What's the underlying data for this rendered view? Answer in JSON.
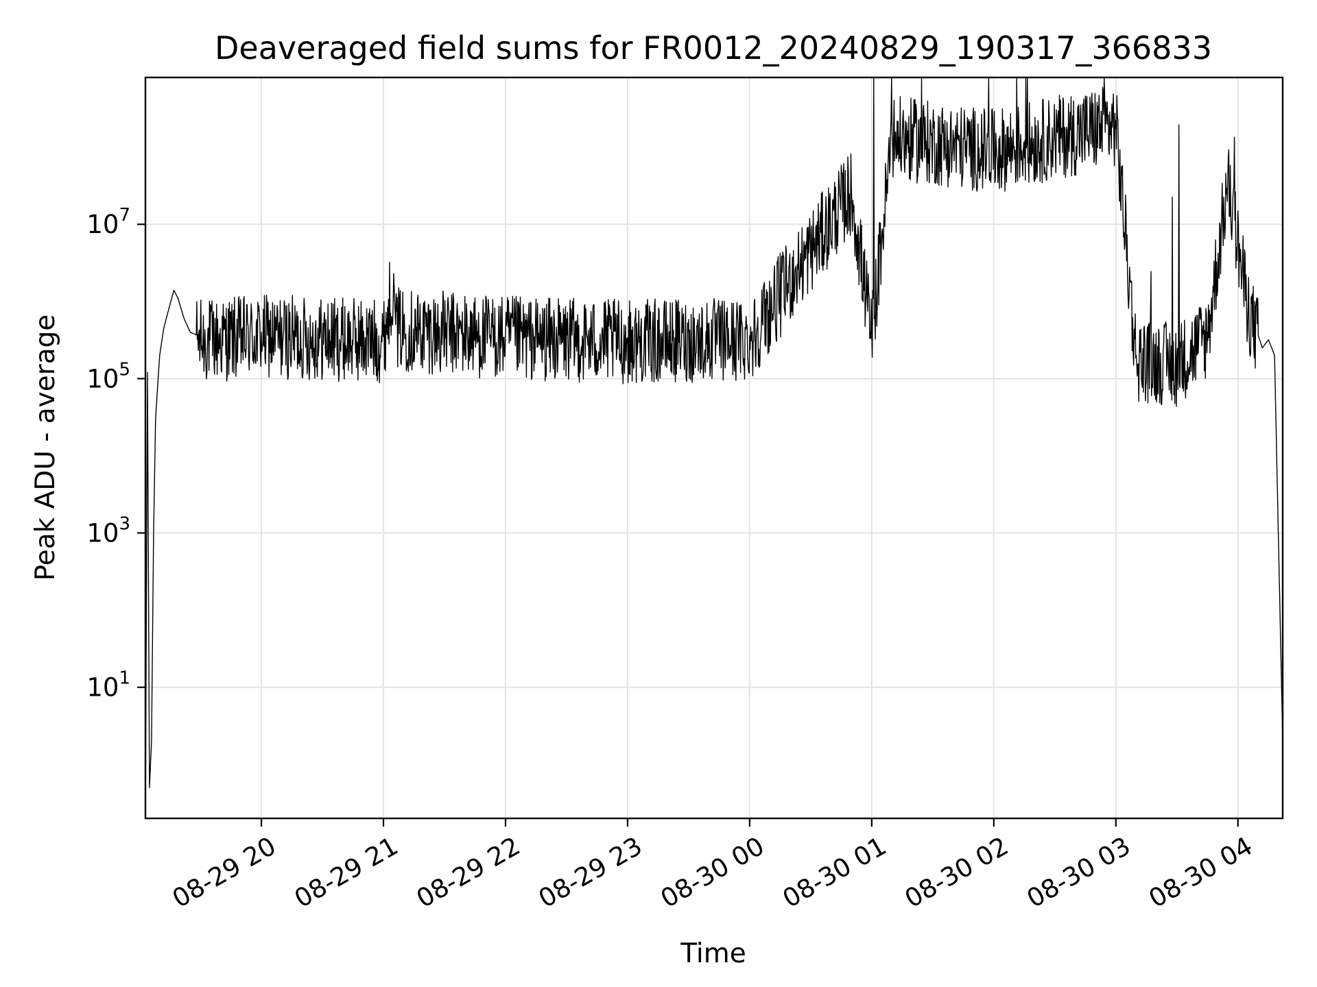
{
  "chart_data": {
    "type": "line",
    "title": "Deaveraged field sums for FR0012_20240829_190317_366833",
    "xlabel": "Time",
    "ylabel": "Peak ADU - average",
    "yscale": "log",
    "grid": true,
    "x_range": [
      "2024-08-29 19:03",
      "2024-08-30 04:22"
    ],
    "ylim": [
      0.2,
      800000000
    ],
    "x_ticks": [
      {
        "time": "2024-08-29 20:00",
        "label": "08-29 20"
      },
      {
        "time": "2024-08-29 21:00",
        "label": "08-29 21"
      },
      {
        "time": "2024-08-29 22:00",
        "label": "08-29 22"
      },
      {
        "time": "2024-08-29 23:00",
        "label": "08-29 23"
      },
      {
        "time": "2024-08-30 00:00",
        "label": "08-30 00"
      },
      {
        "time": "2024-08-30 01:00",
        "label": "08-30 01"
      },
      {
        "time": "2024-08-30 02:00",
        "label": "08-30 02"
      },
      {
        "time": "2024-08-30 03:00",
        "label": "08-30 03"
      },
      {
        "time": "2024-08-30 04:00",
        "label": "08-30 04"
      }
    ],
    "y_ticks": [
      {
        "value": 10,
        "base": "10",
        "exp": "1"
      },
      {
        "value": 1000,
        "base": "10",
        "exp": "3"
      },
      {
        "value": 100000,
        "base": "10",
        "exp": "5"
      },
      {
        "value": 10000000,
        "base": "10",
        "exp": "7"
      }
    ],
    "series": [
      {
        "color": "#000000",
        "points": [
          [
            "2024-08-29 19:03",
            0.2
          ],
          [
            "2024-08-29 19:04",
            120000
          ],
          [
            "2024-08-29 19:05",
            0.5
          ],
          [
            "2024-08-29 19:06",
            2
          ],
          [
            "2024-08-29 19:07",
            1000
          ],
          [
            "2024-08-29 19:08",
            30000
          ],
          [
            "2024-08-29 19:09",
            80000
          ],
          [
            "2024-08-29 19:10",
            200000
          ],
          [
            "2024-08-29 19:12",
            450000
          ],
          [
            "2024-08-29 19:15",
            900000
          ],
          [
            "2024-08-29 19:17",
            1400000
          ],
          [
            "2024-08-29 19:19",
            1100000
          ],
          [
            "2024-08-29 19:22",
            600000
          ],
          [
            "2024-08-29 19:25",
            400000
          ],
          [
            "2024-08-29 19:30",
            350000
          ],
          [
            "2024-08-29 20:00",
            400000
          ],
          [
            "2024-08-29 21:00",
            350000
          ],
          [
            "2024-08-29 21:05",
            2300000
          ],
          [
            "2024-08-29 21:06",
            500000
          ],
          [
            "2024-08-29 22:00",
            380000
          ],
          [
            "2024-08-29 23:00",
            340000
          ],
          [
            "2024-08-30 00:00",
            360000
          ],
          [
            "2024-08-30 00:50",
            30000000
          ],
          [
            "2024-08-30 01:00",
            400000
          ],
          [
            "2024-08-30 01:10",
            150000000
          ],
          [
            "2024-08-30 02:00",
            100000000
          ],
          [
            "2024-08-30 02:30",
            150000000
          ],
          [
            "2024-08-30 03:00",
            220000000
          ],
          [
            "2024-08-30 03:10",
            200000
          ],
          [
            "2024-08-30 03:30",
            170000
          ],
          [
            "2024-08-30 03:45",
            400000
          ],
          [
            "2024-08-30 03:55",
            40000000
          ],
          [
            "2024-08-30 04:05",
            900000
          ],
          [
            "2024-08-30 04:12",
            250000
          ],
          [
            "2024-08-30 04:15",
            320000
          ],
          [
            "2024-08-30 04:18",
            200000
          ],
          [
            "2024-08-30 04:22",
            2
          ]
        ]
      }
    ]
  }
}
